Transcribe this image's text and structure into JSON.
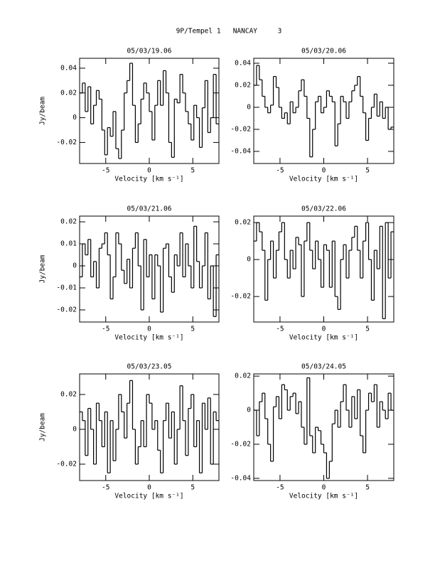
{
  "title": "9P/Tempel 1   NANCAY     3",
  "chart_data": [
    {
      "type": "line",
      "step": true,
      "title": "05/03/19.06",
      "xlabel": "Velocity [km s⁻¹]",
      "ylabel": "Jy/beam",
      "color": "#000000",
      "xlim": [
        -8,
        8
      ],
      "xticks": [
        -5,
        0,
        5
      ],
      "ylim": [
        -0.037,
        0.048
      ],
      "yticks": [
        -0.02,
        0,
        0.02,
        0.04
      ],
      "x": [
        -7.84,
        -7.52,
        -7.2,
        -6.88,
        -6.56,
        -6.24,
        -5.92,
        -5.6,
        -5.28,
        -4.96,
        -4.64,
        -4.32,
        -4,
        -3.68,
        -3.36,
        -3.04,
        -2.72,
        -2.4,
        -2.08,
        -1.76,
        -1.44,
        -1.12,
        -0.8,
        -0.48,
        -0.16,
        0.16,
        0.48,
        0.8,
        1.12,
        1.44,
        1.76,
        2.08,
        2.4,
        2.72,
        3.04,
        3.36,
        3.68,
        4,
        4.32,
        4.64,
        4.96,
        5.28,
        5.6,
        5.92,
        6.24,
        6.56,
        6.88,
        7.2,
        7.52,
        7.84
      ],
      "values": [
        0.02,
        0.028,
        0.005,
        0.025,
        -0.005,
        0.01,
        0.022,
        0.015,
        -0.01,
        -0.03,
        -0.008,
        -0.015,
        0.005,
        -0.025,
        -0.033,
        -0.01,
        0.02,
        0.03,
        0.044,
        0.01,
        -0.02,
        -0.005,
        0.015,
        0.028,
        0.02,
        0.005,
        -0.018,
        0.01,
        0.03,
        0.01,
        0.038,
        0.02,
        -0.02,
        -0.032,
        0.015,
        0.012,
        0.035,
        0.02,
        0.005,
        -0.005,
        -0.018,
        0.01,
        0.0,
        -0.024,
        0.008,
        0.03,
        -0.012,
        0.0,
        0.035,
        -0.005
      ]
    },
    {
      "type": "line",
      "step": true,
      "title": "05/03/20.06",
      "xlabel": "Velocity [km s⁻¹]",
      "color": "#000000",
      "xlim": [
        -8,
        8
      ],
      "xticks": [
        -5,
        0,
        5
      ],
      "ylim": [
        -0.051,
        0.0445
      ],
      "yticks": [
        -0.04,
        -0.02,
        0,
        0.02,
        0.04
      ],
      "x": [
        -7.84,
        -7.52,
        -7.2,
        -6.88,
        -6.56,
        -6.24,
        -5.92,
        -5.6,
        -5.28,
        -4.96,
        -4.64,
        -4.32,
        -4,
        -3.68,
        -3.36,
        -3.04,
        -2.72,
        -2.4,
        -2.08,
        -1.76,
        -1.44,
        -1.12,
        -0.8,
        -0.48,
        -0.16,
        0.16,
        0.48,
        0.8,
        1.12,
        1.44,
        1.76,
        2.08,
        2.4,
        2.72,
        3.04,
        3.36,
        3.68,
        4,
        4.32,
        4.64,
        4.96,
        5.28,
        5.6,
        5.92,
        6.24,
        6.56,
        6.88,
        7.2,
        7.52,
        7.84
      ],
      "values": [
        0.02,
        0.038,
        0.025,
        0.01,
        0.0,
        -0.005,
        0.002,
        0.028,
        0.018,
        0.0,
        -0.01,
        -0.005,
        -0.015,
        0.005,
        -0.005,
        0.0,
        0.015,
        0.025,
        0.01,
        -0.01,
        -0.045,
        -0.02,
        0.005,
        0.01,
        -0.005,
        0.0,
        0.015,
        0.01,
        0.005,
        -0.035,
        -0.015,
        0.01,
        0.005,
        -0.01,
        0.005,
        0.015,
        0.02,
        0.028,
        0.01,
        -0.005,
        -0.03,
        -0.01,
        0.0,
        0.012,
        -0.008,
        0.005,
        -0.01,
        0.0,
        -0.02,
        -0.018
      ]
    },
    {
      "type": "line",
      "step": true,
      "title": "05/03/21.06",
      "xlabel": "Velocity [km s⁻¹]",
      "ylabel": "Jy/beam",
      "color": "#000000",
      "xlim": [
        -8,
        8
      ],
      "xticks": [
        -5,
        0,
        5
      ],
      "ylim": [
        -0.0255,
        0.0226
      ],
      "yticks": [
        -0.02,
        -0.01,
        0,
        0.01,
        0.02
      ],
      "x": [
        -7.84,
        -7.52,
        -7.2,
        -6.88,
        -6.56,
        -6.24,
        -5.92,
        -5.6,
        -5.28,
        -4.96,
        -4.64,
        -4.32,
        -4,
        -3.68,
        -3.36,
        -3.04,
        -2.72,
        -2.4,
        -2.08,
        -1.76,
        -1.44,
        -1.12,
        -0.8,
        -0.48,
        -0.16,
        0.16,
        0.48,
        0.8,
        1.12,
        1.44,
        1.76,
        2.08,
        2.4,
        2.72,
        3.04,
        3.36,
        3.68,
        4,
        4.32,
        4.64,
        4.96,
        5.28,
        5.6,
        5.92,
        6.24,
        6.56,
        6.88,
        7.2,
        7.52,
        7.84
      ],
      "values": [
        -0.005,
        0.01,
        0.005,
        0.012,
        -0.005,
        0.002,
        -0.01,
        0.008,
        0.01,
        0.015,
        0.005,
        -0.015,
        -0.005,
        0.015,
        0.01,
        -0.002,
        -0.008,
        0.003,
        -0.01,
        0.008,
        0.015,
        0.0,
        -0.02,
        0.012,
        -0.005,
        0.005,
        -0.015,
        0.005,
        0.0,
        -0.021,
        0.008,
        0.01,
        -0.005,
        -0.012,
        0.005,
        0.0,
        0.015,
        -0.005,
        0.01,
        0.0,
        -0.01,
        0.018,
        0.002,
        -0.01,
        0.0,
        0.015,
        -0.015,
        0.0,
        -0.023,
        0.005
      ]
    },
    {
      "type": "line",
      "step": true,
      "title": "05/03/22.06",
      "xlabel": "Velocity [km s⁻¹]",
      "color": "#000000",
      "xlim": [
        -8,
        8
      ],
      "xticks": [
        -5,
        0,
        5
      ],
      "ylim": [
        -0.0338,
        0.0235
      ],
      "yticks": [
        -0.02,
        0,
        0.02
      ],
      "x": [
        -7.84,
        -7.52,
        -7.2,
        -6.88,
        -6.56,
        -6.24,
        -5.92,
        -5.6,
        -5.28,
        -4.96,
        -4.64,
        -4.32,
        -4,
        -3.68,
        -3.36,
        -3.04,
        -2.72,
        -2.4,
        -2.08,
        -1.76,
        -1.44,
        -1.12,
        -0.8,
        -0.48,
        -0.16,
        0.16,
        0.48,
        0.8,
        1.12,
        1.44,
        1.76,
        2.08,
        2.4,
        2.72,
        3.04,
        3.36,
        3.68,
        4,
        4.32,
        4.64,
        4.96,
        5.28,
        5.6,
        5.92,
        6.24,
        6.56,
        6.88,
        7.2,
        7.52,
        7.84
      ],
      "values": [
        0.01,
        0.02,
        0.015,
        0.005,
        -0.022,
        0.0,
        0.01,
        -0.01,
        0.005,
        0.015,
        0.02,
        0.0,
        -0.01,
        0.005,
        -0.005,
        0.012,
        0.008,
        -0.02,
        0.01,
        0.02,
        0.005,
        -0.005,
        0.01,
        0.0,
        -0.015,
        0.008,
        0.005,
        -0.015,
        0.01,
        -0.02,
        -0.027,
        0.0,
        0.008,
        -0.01,
        0.005,
        0.012,
        0.018,
        0.005,
        -0.01,
        0.01,
        0.02,
        0.0,
        -0.022,
        0.005,
        -0.005,
        0.018,
        -0.032,
        0.02,
        -0.01,
        0.015
      ]
    },
    {
      "type": "line",
      "step": true,
      "title": "05/03/23.05",
      "xlabel": "Velocity [km s⁻¹]",
      "ylabel": "Jy/beam",
      "color": "#000000",
      "xlim": [
        -8,
        8
      ],
      "xticks": [
        -5,
        0,
        5
      ],
      "ylim": [
        -0.0294,
        0.0318
      ],
      "yticks": [
        -0.02,
        0,
        0.02
      ],
      "x": [
        -7.84,
        -7.52,
        -7.2,
        -6.88,
        -6.56,
        -6.24,
        -5.92,
        -5.6,
        -5.28,
        -4.96,
        -4.64,
        -4.32,
        -4,
        -3.68,
        -3.36,
        -3.04,
        -2.72,
        -2.4,
        -2.08,
        -1.76,
        -1.44,
        -1.12,
        -0.8,
        -0.48,
        -0.16,
        0.16,
        0.48,
        0.8,
        1.12,
        1.44,
        1.76,
        2.08,
        2.4,
        2.72,
        3.04,
        3.36,
        3.68,
        4,
        4.32,
        4.64,
        4.96,
        5.28,
        5.6,
        5.92,
        6.24,
        6.56,
        6.88,
        7.2,
        7.52,
        7.84
      ],
      "values": [
        0.01,
        0.005,
        -0.015,
        0.012,
        0.0,
        -0.02,
        0.015,
        0.005,
        -0.01,
        0.01,
        -0.025,
        0.005,
        -0.018,
        0.0,
        0.02,
        0.01,
        -0.005,
        0.015,
        0.028,
        0.0,
        -0.02,
        -0.01,
        0.005,
        -0.01,
        0.02,
        0.015,
        0.0,
        0.005,
        -0.012,
        -0.025,
        0.005,
        0.015,
        -0.005,
        0.01,
        -0.02,
        0.0,
        0.025,
        0.005,
        -0.015,
        0.012,
        0.02,
        -0.01,
        0.005,
        -0.025,
        0.015,
        0.0,
        0.018,
        -0.02,
        0.01,
        0.005
      ]
    },
    {
      "type": "line",
      "step": true,
      "title": "05/03/24.05",
      "xlabel": "Velocity [km s⁻¹]",
      "color": "#000000",
      "xlim": [
        -8,
        8
      ],
      "xticks": [
        -5,
        0,
        5
      ],
      "ylim": [
        -0.0413,
        0.0213
      ],
      "yticks": [
        -0.04,
        -0.02,
        0,
        0.02
      ],
      "x": [
        -7.84,
        -7.52,
        -7.2,
        -6.88,
        -6.56,
        -6.24,
        -5.92,
        -5.6,
        -5.28,
        -4.96,
        -4.64,
        -4.32,
        -4,
        -3.68,
        -3.36,
        -3.04,
        -2.72,
        -2.4,
        -2.08,
        -1.76,
        -1.44,
        -1.12,
        -0.8,
        -0.48,
        -0.16,
        0.16,
        0.48,
        0.8,
        1.12,
        1.44,
        1.76,
        2.08,
        2.4,
        2.72,
        3.04,
        3.36,
        3.68,
        4,
        4.32,
        4.64,
        4.96,
        5.28,
        5.6,
        5.92,
        6.24,
        6.56,
        6.88,
        7.2,
        7.52,
        7.84
      ],
      "values": [
        0.0,
        -0.015,
        0.005,
        0.01,
        -0.005,
        -0.02,
        -0.03,
        0.002,
        0.008,
        -0.005,
        0.015,
        0.012,
        0.0,
        0.008,
        0.01,
        -0.002,
        0.005,
        -0.01,
        -0.02,
        0.019,
        -0.015,
        -0.025,
        -0.01,
        -0.012,
        -0.02,
        -0.025,
        -0.04,
        -0.03,
        -0.008,
        0.0,
        -0.01,
        0.005,
        0.015,
        0.0,
        -0.01,
        0.008,
        -0.005,
        0.012,
        -0.015,
        -0.025,
        0.0,
        0.01,
        0.005,
        0.015,
        -0.01,
        0.005,
        0.0,
        -0.005,
        0.01,
        0.0
      ]
    }
  ]
}
